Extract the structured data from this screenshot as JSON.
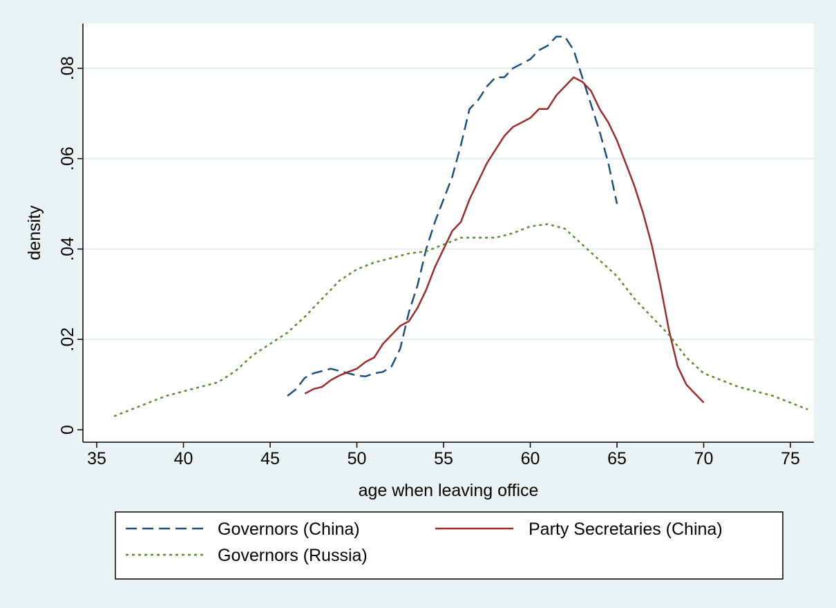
{
  "chart_data": {
    "type": "line",
    "xlabel": "age when leaving office",
    "ylabel": "density",
    "xlim": [
      35,
      77
    ],
    "ylim": [
      0,
      0.09
    ],
    "x_ticks": [
      35,
      40,
      45,
      50,
      55,
      60,
      65,
      70,
      75
    ],
    "x_tick_labels": [
      "35",
      "40",
      "45",
      "50",
      "55",
      "60",
      "65",
      "70",
      "75"
    ],
    "y_ticks": [
      0,
      0.02,
      0.04,
      0.06,
      0.08
    ],
    "y_tick_labels": [
      "0",
      ".02",
      ".04",
      ".06",
      ".08"
    ],
    "grid": "horizontal",
    "legend_position": "bottom",
    "colors": {
      "background": "#eaf2f3",
      "plot_background": "#ffffff",
      "grid": "#e2ecee"
    },
    "series": [
      {
        "name": "Governors (China)",
        "color": "#1f4e79",
        "dash": "16,8",
        "x": [
          46,
          46.5,
          47,
          47.5,
          48,
          48.5,
          49,
          49.5,
          50,
          50.5,
          51,
          51.5,
          52,
          52.5,
          53,
          53.5,
          54,
          54.5,
          55,
          55.5,
          56,
          56.5,
          57,
          57.5,
          58,
          58.5,
          59,
          59.5,
          60,
          60.5,
          61,
          61.5,
          62,
          62.5,
          63,
          63.5,
          64,
          64.5,
          65
        ],
        "y": [
          0.0075,
          0.009,
          0.0115,
          0.0125,
          0.013,
          0.0135,
          0.013,
          0.0125,
          0.012,
          0.0118,
          0.0125,
          0.0128,
          0.014,
          0.018,
          0.026,
          0.032,
          0.04,
          0.046,
          0.051,
          0.056,
          0.063,
          0.071,
          0.073,
          0.076,
          0.078,
          0.078,
          0.08,
          0.081,
          0.082,
          0.084,
          0.085,
          0.087,
          0.087,
          0.084,
          0.078,
          0.072,
          0.066,
          0.059,
          0.05
        ]
      },
      {
        "name": "Party Secretaries (China)",
        "color": "#9b2c2c",
        "dash": "",
        "x": [
          47,
          47.5,
          48,
          48.5,
          49,
          49.5,
          50,
          50.5,
          51,
          51.5,
          52,
          52.5,
          53,
          53.5,
          54,
          54.5,
          55,
          55.5,
          56,
          56.5,
          57,
          57.5,
          58,
          58.5,
          59,
          59.5,
          60,
          60.5,
          61,
          61.5,
          62,
          62.5,
          63,
          63.5,
          64,
          64.5,
          65,
          65.5,
          66,
          66.5,
          67,
          67.5,
          68,
          68.5,
          69,
          69.5,
          70
        ],
        "y": [
          0.008,
          0.009,
          0.0095,
          0.011,
          0.012,
          0.0128,
          0.0135,
          0.015,
          0.016,
          0.019,
          0.021,
          0.023,
          0.024,
          0.027,
          0.031,
          0.036,
          0.04,
          0.044,
          0.046,
          0.051,
          0.055,
          0.059,
          0.062,
          0.065,
          0.067,
          0.068,
          0.069,
          0.071,
          0.071,
          0.074,
          0.076,
          0.078,
          0.077,
          0.075,
          0.071,
          0.068,
          0.064,
          0.059,
          0.054,
          0.048,
          0.041,
          0.032,
          0.022,
          0.014,
          0.01,
          0.008,
          0.006
        ]
      },
      {
        "name": "Governors (Russia)",
        "color": "#5c8a2e",
        "dash": "4,5",
        "x": [
          36,
          37,
          38,
          39,
          40,
          41,
          42,
          43,
          44,
          45,
          46,
          47,
          48,
          49,
          50,
          51,
          52,
          53,
          54,
          55,
          56,
          57,
          58,
          59,
          60,
          61,
          62,
          63,
          64,
          65,
          66,
          67,
          68,
          69,
          70,
          71,
          72,
          73,
          74,
          75,
          76
        ],
        "y": [
          0.003,
          0.0045,
          0.006,
          0.0075,
          0.0085,
          0.0095,
          0.0105,
          0.013,
          0.0165,
          0.019,
          0.0215,
          0.025,
          0.029,
          0.033,
          0.0355,
          0.037,
          0.038,
          0.039,
          0.0395,
          0.041,
          0.0425,
          0.0425,
          0.0425,
          0.0435,
          0.045,
          0.0455,
          0.0445,
          0.041,
          0.0375,
          0.034,
          0.029,
          0.025,
          0.021,
          0.016,
          0.0125,
          0.011,
          0.0095,
          0.0085,
          0.0075,
          0.006,
          0.0045
        ]
      }
    ]
  }
}
